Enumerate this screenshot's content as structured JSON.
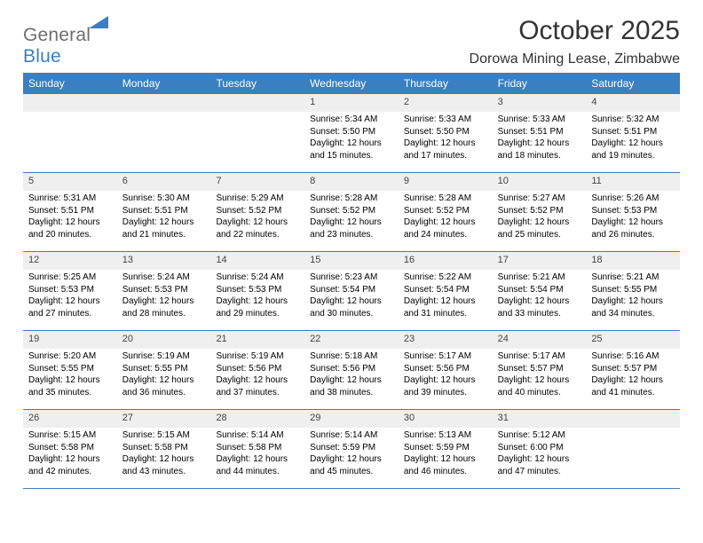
{
  "brand": {
    "word1": "General",
    "word2": "Blue"
  },
  "title": "October 2025",
  "location": "Dorowa Mining Lease, Zimbabwe",
  "colors": {
    "accent": "#3a7fc2",
    "header_bg": "#3a7fc2",
    "daybar_bg": "#efefef",
    "text": "#000000",
    "muted": "#6d6d6d",
    "white": "#ffffff",
    "border": "#3a7fc2"
  },
  "typography": {
    "title_fontsize": 30,
    "location_fontsize": 16,
    "weekday_fontsize": 12,
    "daynum_fontsize": 11,
    "body_fontsize": 10
  },
  "weekdays": [
    "Sunday",
    "Monday",
    "Tuesday",
    "Wednesday",
    "Thursday",
    "Friday",
    "Saturday"
  ],
  "weeks": [
    [
      {
        "n": "",
        "sunrise": "",
        "sunset": "",
        "daylight": ""
      },
      {
        "n": "",
        "sunrise": "",
        "sunset": "",
        "daylight": ""
      },
      {
        "n": "",
        "sunrise": "",
        "sunset": "",
        "daylight": ""
      },
      {
        "n": "1",
        "sunrise": "Sunrise: 5:34 AM",
        "sunset": "Sunset: 5:50 PM",
        "daylight": "Daylight: 12 hours and 15 minutes."
      },
      {
        "n": "2",
        "sunrise": "Sunrise: 5:33 AM",
        "sunset": "Sunset: 5:50 PM",
        "daylight": "Daylight: 12 hours and 17 minutes."
      },
      {
        "n": "3",
        "sunrise": "Sunrise: 5:33 AM",
        "sunset": "Sunset: 5:51 PM",
        "daylight": "Daylight: 12 hours and 18 minutes."
      },
      {
        "n": "4",
        "sunrise": "Sunrise: 5:32 AM",
        "sunset": "Sunset: 5:51 PM",
        "daylight": "Daylight: 12 hours and 19 minutes."
      }
    ],
    [
      {
        "n": "5",
        "sunrise": "Sunrise: 5:31 AM",
        "sunset": "Sunset: 5:51 PM",
        "daylight": "Daylight: 12 hours and 20 minutes."
      },
      {
        "n": "6",
        "sunrise": "Sunrise: 5:30 AM",
        "sunset": "Sunset: 5:51 PM",
        "daylight": "Daylight: 12 hours and 21 minutes."
      },
      {
        "n": "7",
        "sunrise": "Sunrise: 5:29 AM",
        "sunset": "Sunset: 5:52 PM",
        "daylight": "Daylight: 12 hours and 22 minutes."
      },
      {
        "n": "8",
        "sunrise": "Sunrise: 5:28 AM",
        "sunset": "Sunset: 5:52 PM",
        "daylight": "Daylight: 12 hours and 23 minutes."
      },
      {
        "n": "9",
        "sunrise": "Sunrise: 5:28 AM",
        "sunset": "Sunset: 5:52 PM",
        "daylight": "Daylight: 12 hours and 24 minutes."
      },
      {
        "n": "10",
        "sunrise": "Sunrise: 5:27 AM",
        "sunset": "Sunset: 5:52 PM",
        "daylight": "Daylight: 12 hours and 25 minutes."
      },
      {
        "n": "11",
        "sunrise": "Sunrise: 5:26 AM",
        "sunset": "Sunset: 5:53 PM",
        "daylight": "Daylight: 12 hours and 26 minutes."
      }
    ],
    [
      {
        "n": "12",
        "sunrise": "Sunrise: 5:25 AM",
        "sunset": "Sunset: 5:53 PM",
        "daylight": "Daylight: 12 hours and 27 minutes."
      },
      {
        "n": "13",
        "sunrise": "Sunrise: 5:24 AM",
        "sunset": "Sunset: 5:53 PM",
        "daylight": "Daylight: 12 hours and 28 minutes."
      },
      {
        "n": "14",
        "sunrise": "Sunrise: 5:24 AM",
        "sunset": "Sunset: 5:53 PM",
        "daylight": "Daylight: 12 hours and 29 minutes."
      },
      {
        "n": "15",
        "sunrise": "Sunrise: 5:23 AM",
        "sunset": "Sunset: 5:54 PM",
        "daylight": "Daylight: 12 hours and 30 minutes."
      },
      {
        "n": "16",
        "sunrise": "Sunrise: 5:22 AM",
        "sunset": "Sunset: 5:54 PM",
        "daylight": "Daylight: 12 hours and 31 minutes."
      },
      {
        "n": "17",
        "sunrise": "Sunrise: 5:21 AM",
        "sunset": "Sunset: 5:54 PM",
        "daylight": "Daylight: 12 hours and 33 minutes."
      },
      {
        "n": "18",
        "sunrise": "Sunrise: 5:21 AM",
        "sunset": "Sunset: 5:55 PM",
        "daylight": "Daylight: 12 hours and 34 minutes."
      }
    ],
    [
      {
        "n": "19",
        "sunrise": "Sunrise: 5:20 AM",
        "sunset": "Sunset: 5:55 PM",
        "daylight": "Daylight: 12 hours and 35 minutes."
      },
      {
        "n": "20",
        "sunrise": "Sunrise: 5:19 AM",
        "sunset": "Sunset: 5:55 PM",
        "daylight": "Daylight: 12 hours and 36 minutes."
      },
      {
        "n": "21",
        "sunrise": "Sunrise: 5:19 AM",
        "sunset": "Sunset: 5:56 PM",
        "daylight": "Daylight: 12 hours and 37 minutes."
      },
      {
        "n": "22",
        "sunrise": "Sunrise: 5:18 AM",
        "sunset": "Sunset: 5:56 PM",
        "daylight": "Daylight: 12 hours and 38 minutes."
      },
      {
        "n": "23",
        "sunrise": "Sunrise: 5:17 AM",
        "sunset": "Sunset: 5:56 PM",
        "daylight": "Daylight: 12 hours and 39 minutes."
      },
      {
        "n": "24",
        "sunrise": "Sunrise: 5:17 AM",
        "sunset": "Sunset: 5:57 PM",
        "daylight": "Daylight: 12 hours and 40 minutes."
      },
      {
        "n": "25",
        "sunrise": "Sunrise: 5:16 AM",
        "sunset": "Sunset: 5:57 PM",
        "daylight": "Daylight: 12 hours and 41 minutes."
      }
    ],
    [
      {
        "n": "26",
        "sunrise": "Sunrise: 5:15 AM",
        "sunset": "Sunset: 5:58 PM",
        "daylight": "Daylight: 12 hours and 42 minutes."
      },
      {
        "n": "27",
        "sunrise": "Sunrise: 5:15 AM",
        "sunset": "Sunset: 5:58 PM",
        "daylight": "Daylight: 12 hours and 43 minutes."
      },
      {
        "n": "28",
        "sunrise": "Sunrise: 5:14 AM",
        "sunset": "Sunset: 5:58 PM",
        "daylight": "Daylight: 12 hours and 44 minutes."
      },
      {
        "n": "29",
        "sunrise": "Sunrise: 5:14 AM",
        "sunset": "Sunset: 5:59 PM",
        "daylight": "Daylight: 12 hours and 45 minutes."
      },
      {
        "n": "30",
        "sunrise": "Sunrise: 5:13 AM",
        "sunset": "Sunset: 5:59 PM",
        "daylight": "Daylight: 12 hours and 46 minutes."
      },
      {
        "n": "31",
        "sunrise": "Sunrise: 5:12 AM",
        "sunset": "Sunset: 6:00 PM",
        "daylight": "Daylight: 12 hours and 47 minutes."
      },
      {
        "n": "",
        "sunrise": "",
        "sunset": "",
        "daylight": ""
      }
    ]
  ]
}
